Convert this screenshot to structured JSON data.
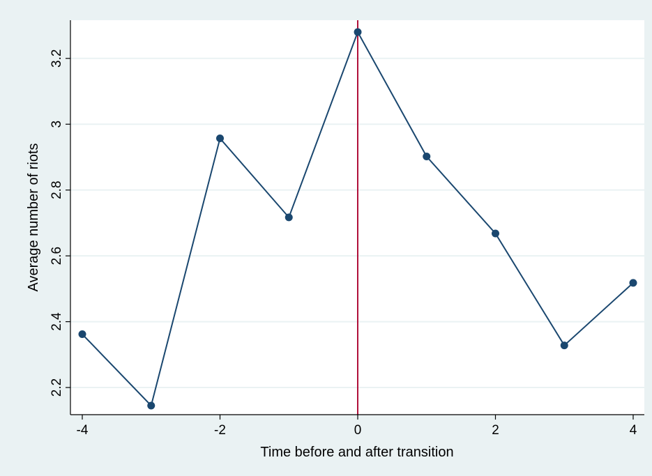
{
  "chart_data": {
    "type": "line",
    "title": "",
    "xlabel": "Time before and after transition",
    "ylabel": "Average number of riots",
    "x": [
      -4,
      -3,
      -2,
      -1,
      0,
      1,
      2,
      3,
      4
    ],
    "series": [
      {
        "values": [
          2.362,
          2.145,
          2.957,
          2.717,
          3.28,
          2.902,
          2.668,
          2.328,
          2.518
        ]
      }
    ],
    "xticks": [
      -4,
      -2,
      0,
      2,
      4
    ],
    "xtick_labels": [
      "-4",
      "-2",
      "0",
      "2",
      "4"
    ],
    "yticks": [
      2.2,
      2.4,
      2.6,
      2.8,
      3.0,
      3.2
    ],
    "ytick_labels": [
      "2.2",
      "2.4",
      "2.6",
      "2.8",
      "3",
      "3.2"
    ],
    "xlim": [
      -4,
      4
    ],
    "ylim": [
      2.145,
      3.28
    ],
    "reference_line": {
      "x": 0
    },
    "grid": "horizontal",
    "colors": {
      "background": "#eaf2f3",
      "plot_area": "#ffffff",
      "line": "#1a476f",
      "marker": "#1a476f",
      "reference_line": "#b0103a",
      "grid": "#eaf2f3"
    }
  }
}
